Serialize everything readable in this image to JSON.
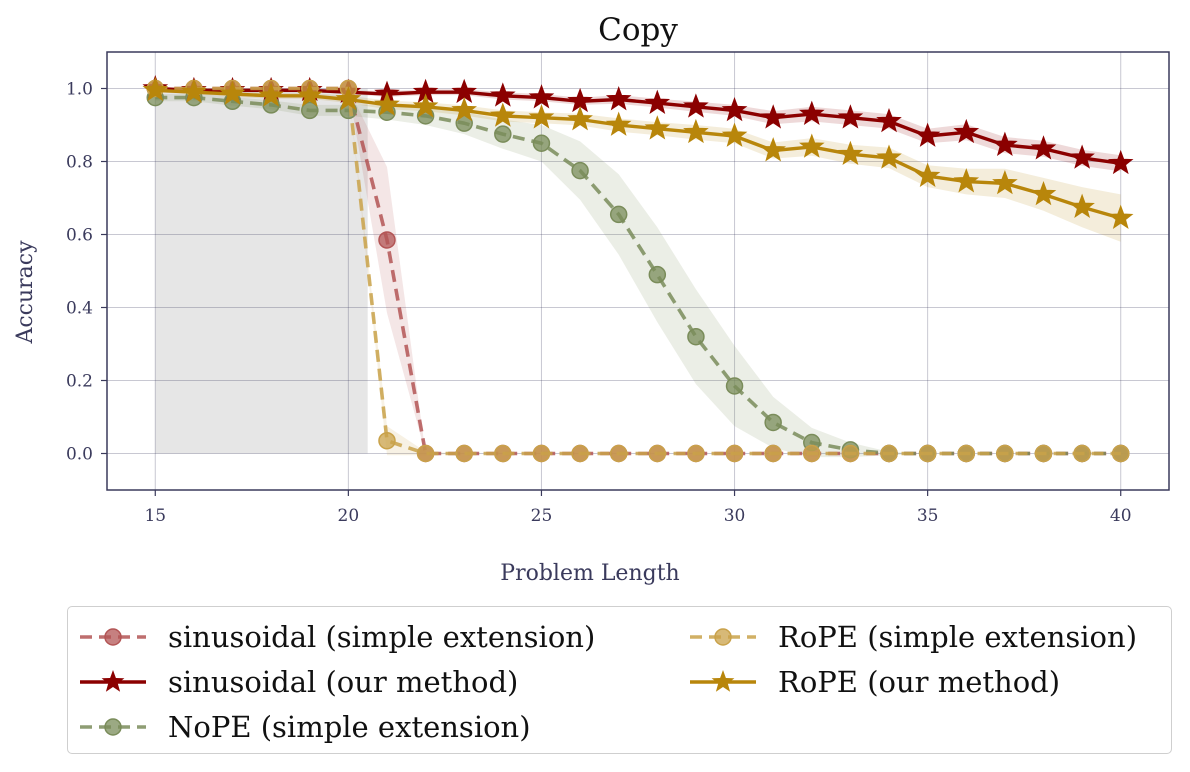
{
  "chart_data": {
    "type": "line",
    "title": "Copy",
    "xlabel": "Problem Length",
    "ylabel": "Accuracy",
    "xlim": [
      13.75,
      41.25
    ],
    "ylim": [
      -0.1,
      1.1
    ],
    "xticks": [
      15,
      20,
      25,
      30,
      35,
      40
    ],
    "yticks": [
      0.0,
      0.2,
      0.4,
      0.6,
      0.8,
      1.0
    ],
    "ytick_labels": [
      "0.0",
      "0.2",
      "0.4",
      "0.6",
      "0.8",
      "1.0"
    ],
    "grid": true,
    "training_region": {
      "x": [
        15,
        20.5
      ],
      "color": "#e6e6e6"
    },
    "legend": {
      "position": "below",
      "columns": 2
    },
    "x": [
      15,
      16,
      17,
      18,
      19,
      20,
      21,
      22,
      23,
      24,
      25,
      26,
      27,
      28,
      29,
      30,
      31,
      32,
      33,
      34,
      35,
      36,
      37,
      38,
      39,
      40
    ],
    "series": [
      {
        "name": "sinusoidal (simple extension)",
        "color": "#b35555",
        "style": "dashed",
        "marker": "circle",
        "values": [
          1.0,
          1.0,
          1.0,
          1.0,
          1.0,
          1.0,
          0.585,
          0.0,
          0.0,
          0.0,
          0.0,
          0.0,
          0.0,
          0.0,
          0.0,
          0.0,
          0.0,
          0.0,
          0.0,
          0.0,
          0.0,
          0.0,
          0.0,
          0.0,
          0.0,
          0.0
        ],
        "band": [
          0,
          0,
          0,
          0,
          0,
          0,
          0.2,
          0,
          0,
          0,
          0,
          0,
          0,
          0,
          0,
          0,
          0,
          0,
          0,
          0,
          0,
          0,
          0,
          0,
          0,
          0
        ]
      },
      {
        "name": "sinusoidal (our method)",
        "color": "#8b0000",
        "style": "solid",
        "marker": "star",
        "values": [
          1.0,
          0.995,
          0.995,
          0.995,
          0.995,
          0.99,
          0.985,
          0.99,
          0.99,
          0.98,
          0.975,
          0.965,
          0.97,
          0.96,
          0.95,
          0.94,
          0.92,
          0.93,
          0.92,
          0.91,
          0.87,
          0.88,
          0.845,
          0.835,
          0.81,
          0.795
        ],
        "band": [
          0.005,
          0.005,
          0.005,
          0.005,
          0.005,
          0.005,
          0.008,
          0.008,
          0.008,
          0.01,
          0.01,
          0.01,
          0.012,
          0.012,
          0.014,
          0.015,
          0.018,
          0.02,
          0.02,
          0.02,
          0.02,
          0.022,
          0.022,
          0.022,
          0.022,
          0.022
        ]
      },
      {
        "name": "NoPE (simple extension)",
        "color": "#7a8c5a",
        "style": "dashed",
        "marker": "circle",
        "values": [
          0.975,
          0.975,
          0.965,
          0.955,
          0.94,
          0.94,
          0.935,
          0.925,
          0.905,
          0.875,
          0.85,
          0.775,
          0.655,
          0.49,
          0.32,
          0.185,
          0.085,
          0.03,
          0.01,
          0.0,
          0.0,
          0.0,
          0.0,
          0.0,
          0.0,
          0.0
        ],
        "band": [
          0.01,
          0.01,
          0.012,
          0.012,
          0.015,
          0.015,
          0.02,
          0.025,
          0.03,
          0.04,
          0.05,
          0.08,
          0.11,
          0.13,
          0.13,
          0.11,
          0.07,
          0.04,
          0.02,
          0.005,
          0,
          0,
          0,
          0,
          0,
          0
        ]
      },
      {
        "name": "RoPE (simple extension)",
        "color": "#c9a24a",
        "style": "dashed",
        "marker": "circle",
        "values": [
          1.0,
          1.0,
          1.0,
          1.0,
          1.0,
          1.0,
          0.035,
          0.0,
          0.0,
          0.0,
          0.0,
          0.0,
          0.0,
          0.0,
          0.0,
          0.0,
          0.0,
          0.0,
          0.0,
          0.0,
          0.0,
          0.0,
          0.0,
          0.0,
          0.0,
          0.0
        ],
        "band": [
          0,
          0,
          0,
          0,
          0,
          0,
          0.04,
          0.005,
          0,
          0,
          0,
          0,
          0,
          0,
          0,
          0,
          0,
          0,
          0,
          0,
          0,
          0,
          0,
          0,
          0,
          0
        ]
      },
      {
        "name": "RoPE (our method)",
        "color": "#b8860b",
        "style": "solid",
        "marker": "star",
        "values": [
          0.995,
          0.99,
          0.985,
          0.98,
          0.98,
          0.97,
          0.955,
          0.95,
          0.94,
          0.925,
          0.92,
          0.915,
          0.9,
          0.89,
          0.88,
          0.87,
          0.83,
          0.84,
          0.82,
          0.81,
          0.76,
          0.745,
          0.74,
          0.71,
          0.675,
          0.645
        ],
        "band": [
          0.005,
          0.006,
          0.008,
          0.008,
          0.008,
          0.01,
          0.012,
          0.012,
          0.014,
          0.015,
          0.015,
          0.016,
          0.018,
          0.018,
          0.02,
          0.02,
          0.022,
          0.024,
          0.026,
          0.028,
          0.03,
          0.035,
          0.04,
          0.045,
          0.055,
          0.065
        ]
      }
    ]
  }
}
